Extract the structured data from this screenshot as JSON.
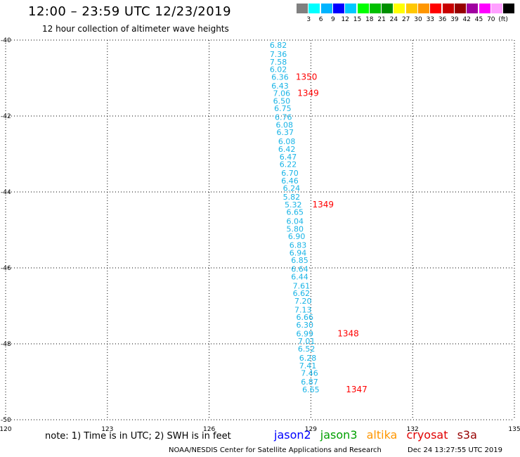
{
  "title": "12:00 – 23:59 UTC 12/23/2019",
  "subtitle": "12 hour collection of altimeter wave heights",
  "legend": {
    "colors": [
      "#808080",
      "#00ffff",
      "#00b4ff",
      "#0000ff",
      "#00c8ff",
      "#00ff00",
      "#00c000",
      "#009000",
      "#ffff00",
      "#ffc800",
      "#ff9600",
      "#ff0000",
      "#c80000",
      "#960000",
      "#a000a0",
      "#ff00ff",
      "#ffa0ff",
      "#000000"
    ],
    "ticks": [
      "3",
      "6",
      "9",
      "12",
      "15",
      "18",
      "21",
      "24",
      "27",
      "30",
      "33",
      "36",
      "39",
      "42",
      "45",
      "70",
      "(ft)"
    ]
  },
  "axes": {
    "lon_labels": [
      "120",
      "123",
      "126",
      "129",
      "132",
      "135"
    ],
    "lat_labels": [
      "-40",
      "-42",
      "-44",
      "-46",
      "-48",
      "-50"
    ],
    "lon_range": [
      120,
      135
    ],
    "lat_range": [
      -50,
      -40
    ]
  },
  "track": {
    "color": "#19b4e6",
    "points": [
      {
        "lon": 128.04,
        "lat": -40.13,
        "v": "6.82"
      },
      {
        "lon": 128.04,
        "lat": -40.37,
        "v": "7.36"
      },
      {
        "lon": 128.04,
        "lat": -40.57,
        "v": "7.58"
      },
      {
        "lon": 128.04,
        "lat": -40.77,
        "v": "6.02"
      },
      {
        "lon": 128.09,
        "lat": -40.97,
        "v": "6.36"
      },
      {
        "lon": 128.09,
        "lat": -41.2,
        "v": "6.43"
      },
      {
        "lon": 128.14,
        "lat": -41.4,
        "v": "7.06"
      },
      {
        "lon": 128.14,
        "lat": -41.6,
        "v": "6.50"
      },
      {
        "lon": 128.17,
        "lat": -41.8,
        "v": "6.75"
      },
      {
        "lon": 128.19,
        "lat": -42.03,
        "v": "6.76"
      },
      {
        "lon": 128.22,
        "lat": -42.23,
        "v": "6.08"
      },
      {
        "lon": 128.24,
        "lat": -42.43,
        "v": "6.37"
      },
      {
        "lon": 128.29,
        "lat": -42.67,
        "v": "6.08"
      },
      {
        "lon": 128.29,
        "lat": -42.87,
        "v": "6.42"
      },
      {
        "lon": 128.33,
        "lat": -43.07,
        "v": "6.47"
      },
      {
        "lon": 128.33,
        "lat": -43.27,
        "v": "6.22"
      },
      {
        "lon": 128.38,
        "lat": -43.5,
        "v": "6.70"
      },
      {
        "lon": 128.38,
        "lat": -43.7,
        "v": "6.46"
      },
      {
        "lon": 128.43,
        "lat": -43.9,
        "v": "6.24"
      },
      {
        "lon": 128.43,
        "lat": -44.13,
        "v": "5.82"
      },
      {
        "lon": 128.48,
        "lat": -44.33,
        "v": "5.32"
      },
      {
        "lon": 128.53,
        "lat": -44.53,
        "v": "6.65"
      },
      {
        "lon": 128.53,
        "lat": -44.77,
        "v": "6.04"
      },
      {
        "lon": 128.53,
        "lat": -44.97,
        "v": "5.80"
      },
      {
        "lon": 128.58,
        "lat": -45.17,
        "v": "6.90"
      },
      {
        "lon": 128.62,
        "lat": -45.4,
        "v": "6.83"
      },
      {
        "lon": 128.62,
        "lat": -45.6,
        "v": "6.94"
      },
      {
        "lon": 128.67,
        "lat": -45.8,
        "v": "6.85"
      },
      {
        "lon": 128.67,
        "lat": -46.03,
        "v": "6.64"
      },
      {
        "lon": 128.67,
        "lat": -46.23,
        "v": "6.44"
      },
      {
        "lon": 128.72,
        "lat": -46.47,
        "v": "7.61"
      },
      {
        "lon": 128.72,
        "lat": -46.67,
        "v": "6.62"
      },
      {
        "lon": 128.77,
        "lat": -46.87,
        "v": "7.20"
      },
      {
        "lon": 128.77,
        "lat": -47.1,
        "v": "7.13"
      },
      {
        "lon": 128.82,
        "lat": -47.3,
        "v": "6.66"
      },
      {
        "lon": 128.82,
        "lat": -47.5,
        "v": "6.30"
      },
      {
        "lon": 128.82,
        "lat": -47.73,
        "v": "6.99"
      },
      {
        "lon": 128.87,
        "lat": -47.93,
        "v": "7.01"
      },
      {
        "lon": 128.87,
        "lat": -48.13,
        "v": "6.52"
      },
      {
        "lon": 128.91,
        "lat": -48.37,
        "v": "6.28"
      },
      {
        "lon": 128.91,
        "lat": -48.57,
        "v": "7.41"
      },
      {
        "lon": 128.96,
        "lat": -48.77,
        "v": "7.46"
      },
      {
        "lon": 128.96,
        "lat": -49.0,
        "v": "6.87"
      },
      {
        "lon": 129.0,
        "lat": -49.2,
        "v": "6.65"
      }
    ]
  },
  "passes": [
    {
      "lon": 128.87,
      "lat": -40.97,
      "label": "1350"
    },
    {
      "lon": 128.92,
      "lat": -41.4,
      "label": "1349"
    },
    {
      "lon": 129.36,
      "lat": -44.33,
      "label": "1349"
    },
    {
      "lon": 130.1,
      "lat": -47.73,
      "label": "1348"
    },
    {
      "lon": 130.35,
      "lat": -49.2,
      "label": "1347"
    }
  ],
  "note": "note:  1) Time is in UTC;  2) SWH is in feet",
  "satellites": [
    {
      "name": "jason2",
      "color": "#0000ff"
    },
    {
      "name": "jason3",
      "color": "#00a000"
    },
    {
      "name": "altika",
      "color": "#ff9600"
    },
    {
      "name": "cryosat",
      "color": "#e00000"
    },
    {
      "name": "s3a",
      "color": "#960000"
    }
  ],
  "footer": {
    "credit": "NOAA/NESDIS Center for Satellite Applications and Research",
    "timestamp": "Dec 24 13:27:55 UTC 2019"
  }
}
